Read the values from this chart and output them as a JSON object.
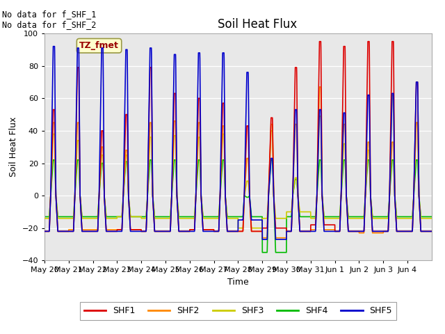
{
  "title": "Soil Heat Flux",
  "xlabel": "Time",
  "ylabel": "Soil Heat Flux",
  "ylim": [
    -40,
    100
  ],
  "yticks": [
    -40,
    -20,
    0,
    20,
    40,
    60,
    80,
    100
  ],
  "annotation_text": "No data for f_SHF_1\nNo data for f_SHF_2",
  "legend_box_text": "TZ_fmet",
  "legend_box_color": "#ffffcc",
  "legend_box_edge_color": "#999944",
  "series_colors": {
    "SHF1": "#dd0000",
    "SHF2": "#ff8800",
    "SHF3": "#cccc00",
    "SHF4": "#00bb00",
    "SHF5": "#0000cc"
  },
  "x_tick_labels": [
    "May 20",
    "May 21",
    "May 22",
    "May 23",
    "May 24",
    "May 25",
    "May 26",
    "May 27",
    "May 28",
    "May 29",
    "May 30",
    "May 31",
    "Jun 1",
    "Jun 2",
    "Jun 3",
    "Jun 4"
  ],
  "num_days": 16,
  "day_peaks_SHF1": [
    53,
    79,
    40,
    50,
    79,
    63,
    60,
    57,
    43,
    48,
    79,
    95,
    92,
    95,
    95,
    70
  ],
  "day_peaks_SHF2": [
    45,
    45,
    30,
    28,
    45,
    46,
    45,
    43,
    23,
    44,
    44,
    67,
    44,
    33,
    33,
    45
  ],
  "day_peaks_SHF3": [
    38,
    34,
    25,
    25,
    36,
    37,
    36,
    38,
    9,
    40,
    11,
    49,
    32,
    28,
    62,
    45
  ],
  "day_peaks_SHF4": [
    22,
    22,
    20,
    21,
    22,
    22,
    22,
    22,
    -1,
    22,
    10,
    22,
    22,
    22,
    22,
    22
  ],
  "day_peaks_SHF5": [
    92,
    91,
    91,
    90,
    91,
    87,
    88,
    88,
    76,
    23,
    53,
    53,
    51,
    62,
    63,
    70
  ],
  "day_troughs_SHF1": [
    -22,
    -22,
    -22,
    -21,
    -22,
    -22,
    -21,
    -22,
    -22,
    -20,
    -22,
    -18,
    -22,
    -22,
    -22,
    -22
  ],
  "day_troughs_SHF2": [
    -22,
    -21,
    -21,
    -21,
    -22,
    -22,
    -21,
    -22,
    -22,
    -26,
    -22,
    -21,
    -22,
    -23,
    -22,
    -22
  ],
  "day_troughs_SHF3": [
    -14,
    -14,
    -14,
    -13,
    -14,
    -14,
    -14,
    -14,
    -20,
    -14,
    -10,
    -14,
    -14,
    -14,
    -14,
    -14
  ],
  "day_troughs_SHF4": [
    -13,
    -13,
    -13,
    -13,
    -13,
    -13,
    -13,
    -13,
    -13,
    -35,
    -13,
    -13,
    -13,
    -13,
    -13,
    -13
  ],
  "day_troughs_SHF5": [
    -22,
    -22,
    -22,
    -22,
    -22,
    -22,
    -22,
    -22,
    -15,
    -27,
    -22,
    -22,
    -22,
    -22,
    -22,
    -22
  ]
}
